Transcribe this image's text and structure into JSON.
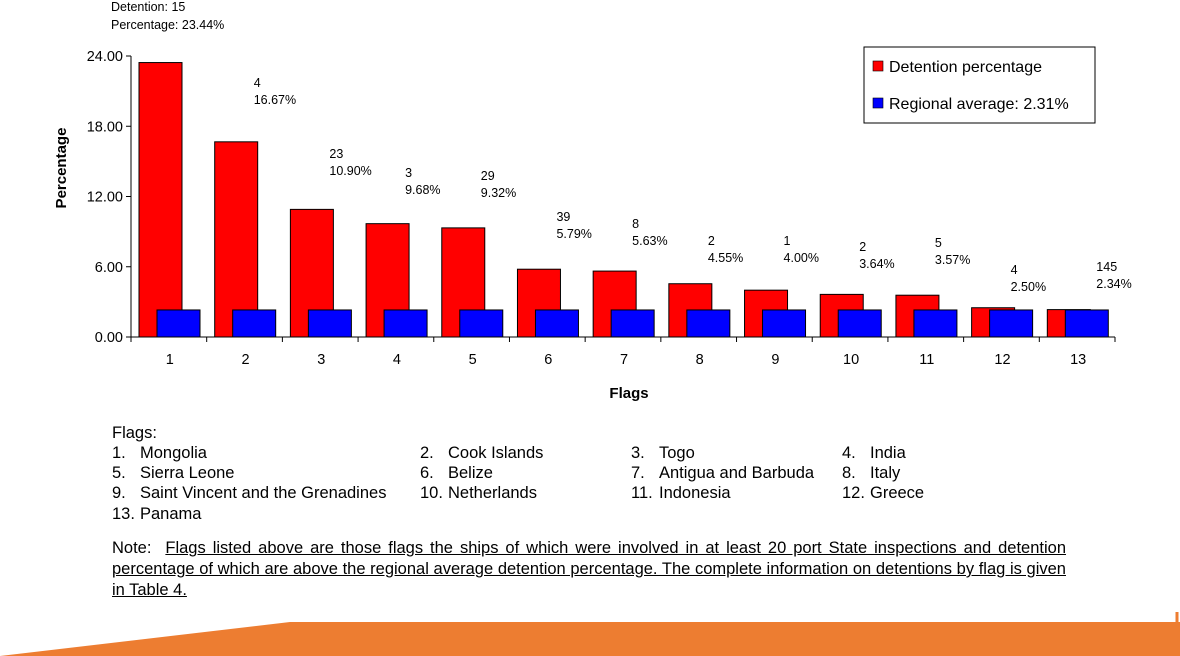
{
  "top_annotation": {
    "line1": "Detention: 15",
    "line2": "Percentage: 23.44%"
  },
  "chart_data": {
    "type": "bar",
    "title": "",
    "xlabel": "Flags",
    "ylabel": "Percentage",
    "ylim": [
      0,
      24
    ],
    "yticks": [
      "0.00",
      "6.00",
      "12.00",
      "18.00",
      "24.00"
    ],
    "categories": [
      "1",
      "2",
      "3",
      "4",
      "5",
      "6",
      "7",
      "8",
      "9",
      "10",
      "11",
      "12",
      "13"
    ],
    "series": [
      {
        "name": "Detention percentage",
        "color": "#ff0000",
        "values": [
          23.44,
          16.67,
          10.9,
          9.68,
          9.32,
          5.79,
          5.63,
          4.55,
          4.0,
          3.64,
          3.57,
          2.5,
          2.34
        ]
      },
      {
        "name": "Regional average: 2.31%",
        "color": "#0000ff",
        "values": [
          2.31,
          2.31,
          2.31,
          2.31,
          2.31,
          2.31,
          2.31,
          2.31,
          2.31,
          2.31,
          2.31,
          2.31,
          2.31
        ]
      }
    ],
    "data_labels": [
      {
        "count": "",
        "pct": ""
      },
      {
        "count": "4",
        "pct": "16.67%"
      },
      {
        "count": "23",
        "pct": "10.90%"
      },
      {
        "count": "3",
        "pct": "9.68%"
      },
      {
        "count": "29",
        "pct": "9.32%"
      },
      {
        "count": "39",
        "pct": "5.79%"
      },
      {
        "count": "8",
        "pct": "5.63%"
      },
      {
        "count": "2",
        "pct": "4.55%"
      },
      {
        "count": "1",
        "pct": "4.00%"
      },
      {
        "count": "2",
        "pct": "3.64%"
      },
      {
        "count": "5",
        "pct": "3.57%"
      },
      {
        "count": "4",
        "pct": "2.50%"
      },
      {
        "count": "145",
        "pct": "2.34%"
      }
    ],
    "legend_position": "top-right",
    "grid": false
  },
  "flags": {
    "heading": "Flags:",
    "items": [
      {
        "num": "1.",
        "name": "Mongolia"
      },
      {
        "num": "2.",
        "name": "Cook Islands"
      },
      {
        "num": "3.",
        "name": "Togo"
      },
      {
        "num": "4.",
        "name": "India"
      },
      {
        "num": "5.",
        "name": "Sierra Leone"
      },
      {
        "num": "6.",
        "name": "Belize"
      },
      {
        "num": "7.",
        "name": "Antigua and Barbuda"
      },
      {
        "num": "8.",
        "name": "Italy"
      },
      {
        "num": "9.",
        "name": "Saint Vincent and the Grenadines"
      },
      {
        "num": "10.",
        "name": "Netherlands"
      },
      {
        "num": "11.",
        "name": "Indonesia"
      },
      {
        "num": "12.",
        "name": "Greece"
      },
      {
        "num": "13.",
        "name": "Panama"
      }
    ]
  },
  "note": {
    "label": "Note:",
    "text": "Flags listed above are those flags the ships of which were involved in at least 20 port State inspections and detention percentage of which are above the regional average detention percentage. The complete information on detentions by flag is given in Table 4."
  },
  "theme": {
    "accent": "#ed7d31"
  }
}
